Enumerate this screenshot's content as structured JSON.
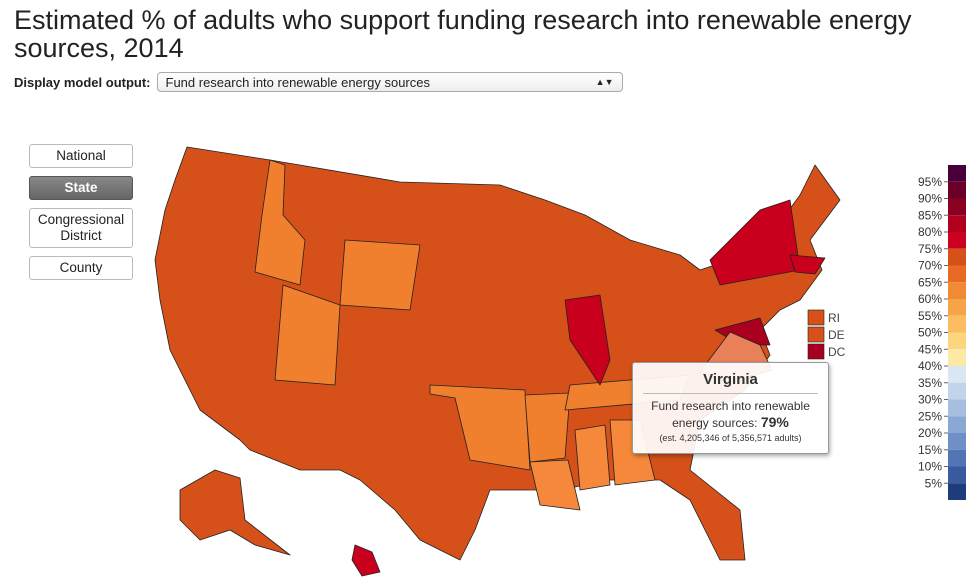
{
  "header": {
    "title": "Estimated % of adults who support funding research into renewable energy sources, 2014"
  },
  "control": {
    "label": "Display model output:",
    "selected": "Fund research into renewable energy sources"
  },
  "geography_buttons": {
    "labels": [
      "National",
      "State",
      "Congressional District",
      "County"
    ],
    "selected_index": 1
  },
  "small_states": {
    "labels": [
      "RI",
      "DE",
      "DC"
    ],
    "colors": [
      "#d6501a",
      "#d6501a",
      "#a8001e"
    ]
  },
  "tooltip": {
    "title": "Virginia",
    "text": "Fund research into renewable energy sources:",
    "value": "79%",
    "note": "(est. 4,205,346 of 5,356,571 adults)"
  },
  "legend": {
    "ylim": [
      0,
      100
    ],
    "colors": [
      "#49003a",
      "#6a0028",
      "#8a0022",
      "#b0001e",
      "#cc0020",
      "#d6501a",
      "#e86a25",
      "#f08a35",
      "#f5a447",
      "#fbbd60",
      "#fdd57e",
      "#fde9a6",
      "#dbe6f3",
      "#c2d4ea",
      "#a6bfe0",
      "#8aa8d4",
      "#6f8fc6",
      "#5475b5",
      "#3a5a9f",
      "#1f3c7a"
    ],
    "ticks": [
      {
        "value": 95,
        "label": "95%"
      },
      {
        "value": 90,
        "label": "90%"
      },
      {
        "value": 85,
        "label": "85%"
      },
      {
        "value": 80,
        "label": "80%"
      },
      {
        "value": 75,
        "label": "75%"
      },
      {
        "value": 70,
        "label": "70%"
      },
      {
        "value": 65,
        "label": "65%"
      },
      {
        "value": 60,
        "label": "60%"
      },
      {
        "value": 55,
        "label": "55%"
      },
      {
        "value": 50,
        "label": "50%"
      },
      {
        "value": 45,
        "label": "45%"
      },
      {
        "value": 40,
        "label": "40%"
      },
      {
        "value": 35,
        "label": "35%"
      },
      {
        "value": 30,
        "label": "30%"
      },
      {
        "value": 25,
        "label": "25%"
      },
      {
        "value": 20,
        "label": "20%"
      },
      {
        "value": 15,
        "label": "15%"
      },
      {
        "value": 10,
        "label": "10%"
      },
      {
        "value": 5,
        "label": "5%"
      }
    ]
  }
}
